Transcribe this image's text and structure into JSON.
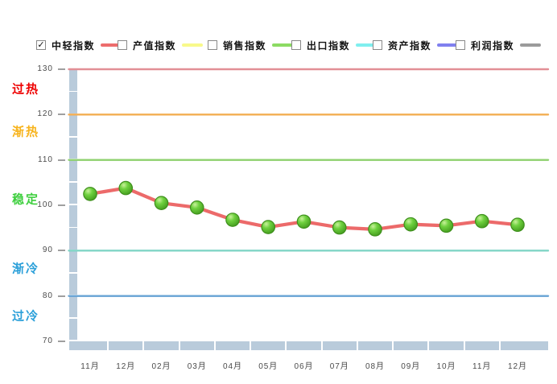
{
  "legend": {
    "items": [
      {
        "label": "中轻指数",
        "checked": true,
        "color": "#ed6d6d"
      },
      {
        "label": "产值指数",
        "checked": false,
        "color": "#f8f98b"
      },
      {
        "label": "销售指数",
        "checked": false,
        "color": "#8cdb63"
      },
      {
        "label": "出口指数",
        "checked": false,
        "color": "#80efef"
      },
      {
        "label": "资产指数",
        "checked": false,
        "color": "#8080ef"
      },
      {
        "label": "利润指数",
        "checked": false,
        "color": "#9b9b9b"
      }
    ],
    "check_glyph": "✓"
  },
  "zones": [
    {
      "label": "过热",
      "color": "#ee0000"
    },
    {
      "label": "渐热",
      "color": "#f7b31b"
    },
    {
      "label": "稳定",
      "color": "#3ecf3e"
    },
    {
      "label": "渐冷",
      "color": "#2a9fd9"
    },
    {
      "label": "过冷",
      "color": "#2a9fd9"
    }
  ],
  "chart_data": {
    "type": "line",
    "title": "",
    "xlabel": "",
    "ylabel": "",
    "categories": [
      "11月",
      "12月",
      "02月",
      "03月",
      "04月",
      "05月",
      "06月",
      "07月",
      "08月",
      "09月",
      "10月",
      "11月",
      "12月"
    ],
    "series": [
      {
        "name": "中轻指数",
        "color": "#ec6a6a",
        "marker_fill": "#5fc832",
        "marker_stroke": "#3e8f1c",
        "values": [
          102.5,
          103.8,
          100.5,
          99.5,
          96.8,
          95.2,
          96.4,
          95.1,
          94.7,
          95.8,
          95.5,
          96.5,
          95.7
        ]
      }
    ],
    "ylim": [
      70,
      130
    ],
    "yticks": [
      130,
      120,
      110,
      100,
      90,
      80,
      70
    ],
    "reference_lines": [
      {
        "value": 130,
        "color": "#e28f96",
        "zone": "过热"
      },
      {
        "value": 120,
        "color": "#f3ae52",
        "zone": "渐热"
      },
      {
        "value": 110,
        "color": "#8ed06e",
        "zone": "稳定"
      },
      {
        "value": 90,
        "color": "#80d5c6",
        "zone": "渐冷"
      },
      {
        "value": 80,
        "color": "#66a3d4",
        "zone": "过冷"
      }
    ],
    "legend_position": "top",
    "grid": false
  }
}
